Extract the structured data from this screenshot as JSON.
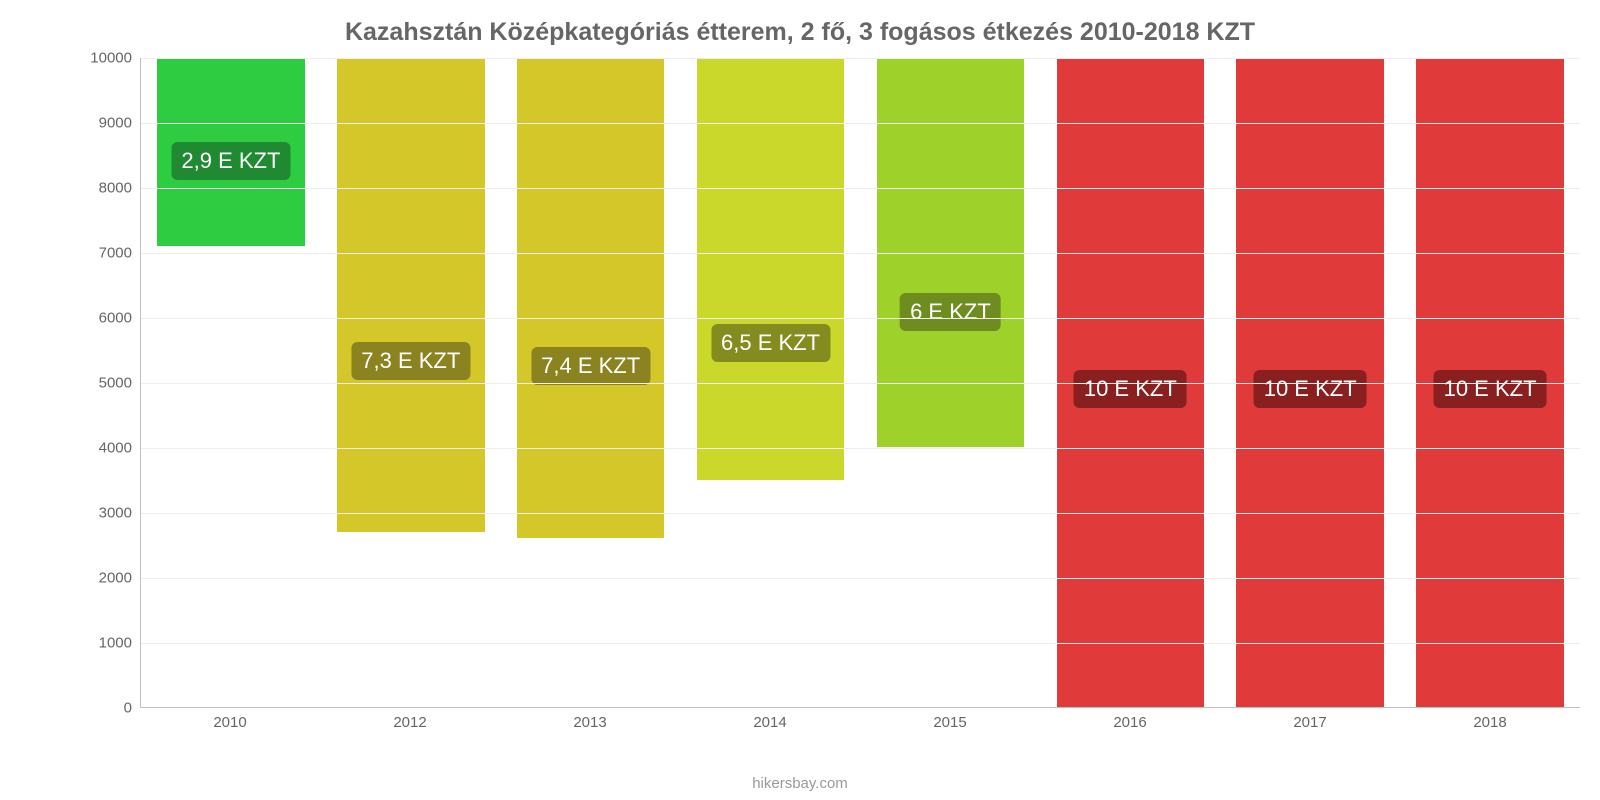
{
  "chart": {
    "type": "bar",
    "title": "Kazahsztán Középkategóriás étterem, 2 fő, 3 fogásos étkezés 2010-2018 KZT",
    "title_fontsize": 25,
    "title_color": "#666666",
    "background_color": "#ffffff",
    "grid_color": "#eeeeee",
    "axis_color": "#bfbfbf",
    "label_color": "#666666",
    "label_fontsize": 15,
    "bar_label_fontsize": 22,
    "bar_width_pct": 82,
    "ylim": [
      0,
      10000
    ],
    "ytick_step": 1000,
    "yticks": [
      0,
      1000,
      2000,
      3000,
      4000,
      5000,
      6000,
      7000,
      8000,
      9000,
      10000
    ],
    "categories": [
      "2010",
      "2012",
      "2013",
      "2014",
      "2015",
      "2016",
      "2017",
      "2018"
    ],
    "values": [
      2900,
      7300,
      7400,
      6500,
      6000,
      10000,
      10000,
      10000
    ],
    "bar_colors": [
      "#2ecc40",
      "#d4c72a",
      "#d4c72a",
      "#c9d82a",
      "#9ed22a",
      "#e03a3a",
      "#e03a3a",
      "#e03a3a"
    ],
    "bar_label_bg": [
      "#1f8a32",
      "#8a8320",
      "#8a8320",
      "#848c20",
      "#6f8c20",
      "#8a1f1f",
      "#8a1f1f",
      "#8a1f1f"
    ],
    "bar_labels": [
      "2,9 E KZT",
      "7,3 E KZT",
      "7,4 E KZT",
      "6,5 E KZT",
      "6 E KZT",
      "10 E KZT",
      "10 E KZT",
      "10 E KZT"
    ],
    "bar_label_y_offset_pct": [
      35,
      32,
      32,
      28,
      30,
      46,
      46,
      46
    ],
    "attribution": "hikersbay.com"
  }
}
